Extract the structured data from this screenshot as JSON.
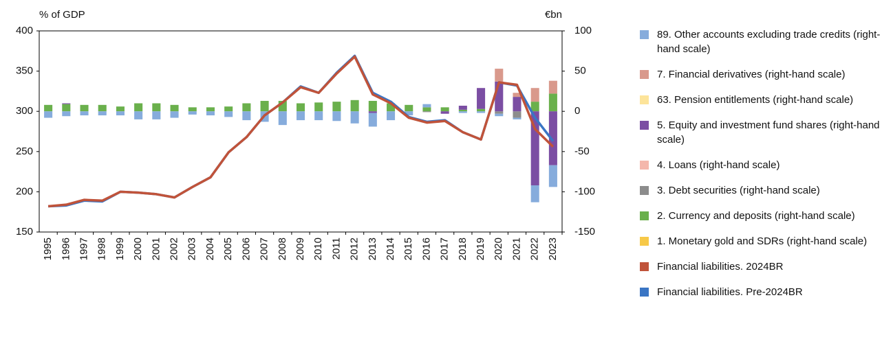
{
  "chart_data": {
    "type": "bar",
    "y_label": "% of GDP",
    "y2_label": "€bn",
    "categories": [
      "1995",
      "1996",
      "1997",
      "1998",
      "1999",
      "2000",
      "2001",
      "2002",
      "2003",
      "2004",
      "2005",
      "2006",
      "2007",
      "2008",
      "2009",
      "2010",
      "2011",
      "2012",
      "2013",
      "2014",
      "2015",
      "2016",
      "2017",
      "2018",
      "2019",
      "2020",
      "2021",
      "2022",
      "2023"
    ],
    "ylim": [
      150,
      400
    ],
    "yticks": [
      150,
      200,
      250,
      300,
      350,
      400
    ],
    "y2lim": [
      -150,
      100
    ],
    "y2ticks": [
      -150,
      -100,
      -50,
      0,
      50,
      100
    ],
    "series": [
      {
        "name": "89. Other accounts excluding trade credits (right-hand scale)",
        "color": "#86acdc",
        "axis": "y2",
        "values": [
          -8,
          -6,
          -5,
          -5,
          -5,
          -10,
          -10,
          -8,
          -4,
          -5,
          -7,
          -11,
          -13,
          -17,
          -11,
          -11,
          -12,
          -15,
          -17,
          -11,
          -5,
          4,
          0,
          -2,
          -2,
          -3,
          -2,
          -21,
          -27
        ]
      },
      {
        "name": "7. Financial derivatives (right-hand scale)",
        "color": "#d9998c",
        "axis": "y2",
        "values": [
          0,
          0,
          0,
          0,
          0,
          0,
          0,
          0,
          0,
          0,
          0,
          0,
          0,
          0,
          0,
          0,
          0,
          0,
          0,
          0,
          0,
          0,
          0,
          0,
          0,
          16,
          5,
          17,
          16
        ]
      },
      {
        "name": "63. Pension entitlements (right-hand scale)",
        "color": "#fde49a",
        "axis": "y2",
        "values": [
          0,
          0,
          0,
          0,
          0,
          0,
          0,
          0,
          0,
          0,
          0,
          0,
          0,
          0,
          0,
          0,
          0,
          0,
          0,
          0,
          0,
          0,
          0,
          0,
          0,
          0,
          0,
          0,
          0
        ]
      },
      {
        "name": "5. Equity and investment fund shares (right-hand scale)",
        "color": "#7b4ea3",
        "axis": "y2",
        "values": [
          0,
          1,
          0,
          0,
          0,
          0,
          0,
          0,
          0,
          0,
          0,
          0,
          0,
          0,
          0,
          0,
          0,
          0,
          -2,
          0,
          0,
          0,
          -3,
          5,
          26,
          37,
          18,
          -92,
          -67
        ]
      },
      {
        "name": "4. Loans (right-hand scale)",
        "color": "#f4b7ac",
        "axis": "y2",
        "values": [
          0,
          0,
          0,
          0,
          0,
          0,
          0,
          0,
          0,
          0,
          0,
          0,
          0,
          0,
          0,
          0,
          0,
          0,
          0,
          0,
          0,
          0,
          0,
          0,
          0,
          0,
          0,
          0,
          0
        ]
      },
      {
        "name": "3. Debt securities (right-hand scale)",
        "color": "#8c8c8c",
        "axis": "y2",
        "values": [
          0,
          0,
          0,
          0,
          0,
          0,
          0,
          0,
          0,
          0,
          0,
          0,
          0,
          0,
          0,
          0,
          0,
          0,
          0,
          0,
          0,
          -1,
          0,
          0,
          0,
          -3,
          -8,
          0,
          0
        ]
      },
      {
        "name": "2. Currency and deposits (right-hand scale)",
        "color": "#6ab04c",
        "axis": "y2",
        "values": [
          8,
          9,
          8,
          8,
          6,
          10,
          10,
          8,
          5,
          5,
          6,
          10,
          13,
          13,
          10,
          11,
          12,
          14,
          13,
          10,
          8,
          5,
          5,
          2,
          3,
          0,
          0,
          12,
          22
        ]
      },
      {
        "name": "1. Monetary gold and SDRs (right-hand scale)",
        "color": "#f7c948",
        "axis": "y2",
        "values": [
          0,
          0,
          0,
          0,
          0,
          0,
          0,
          0,
          0,
          0,
          0,
          0,
          0,
          0,
          0,
          0,
          0,
          0,
          0,
          0,
          0,
          0,
          0,
          0,
          0,
          0,
          0,
          0,
          0
        ]
      },
      {
        "name": "Financial liabilities. 2024BR",
        "color": "#c0533a",
        "type": "line",
        "values": [
          182,
          184,
          190,
          189,
          200,
          199,
          197,
          193,
          206,
          218,
          249,
          268,
          295,
          311,
          330,
          323,
          347,
          368,
          321,
          310,
          292,
          286,
          288,
          274,
          265,
          336,
          333,
          278,
          256
        ]
      },
      {
        "name": "Financial liabilities. Pre-2024BR",
        "color": "#3a75c4",
        "type": "line",
        "values": [
          182,
          183,
          189,
          188,
          200,
          199,
          197,
          193,
          206,
          218,
          249,
          268,
          295,
          311,
          331,
          323,
          348,
          369,
          323,
          312,
          293,
          287,
          289,
          274,
          265,
          336,
          332,
          292,
          263
        ]
      }
    ]
  }
}
